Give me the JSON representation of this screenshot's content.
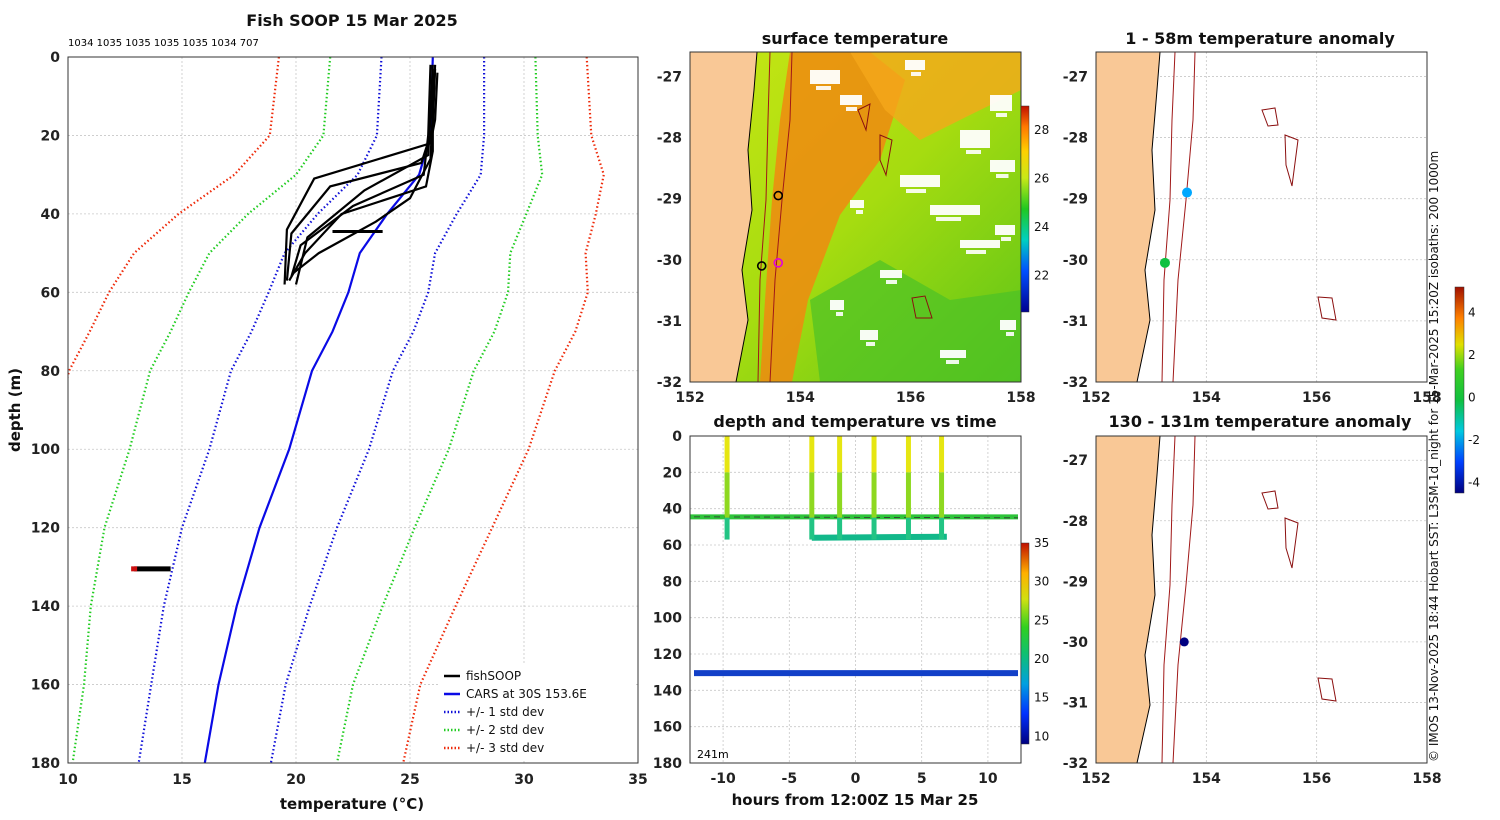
{
  "colors": {
    "land": "#f9c896",
    "fish": "#000000",
    "cars": "#0a0ae6",
    "std1": "#1010d8",
    "std2": "#22cc22",
    "std3": "#ee2a0a",
    "isobath": "#b22222"
  },
  "chart_data": [
    {
      "id": "profile",
      "type": "line",
      "title": "Fish SOOP 15 Mar 2025",
      "top_annotation": "1034 1035 1035 1035 1035 1034 707",
      "xlabel": "temperature (°C)",
      "ylabel": "depth (m)",
      "xlim": [
        10,
        35
      ],
      "ylim": [
        180,
        0
      ],
      "xticks": [
        "10",
        "15",
        "20",
        "25",
        "30",
        "35"
      ],
      "yticks": [
        "0",
        "20",
        "40",
        "60",
        "80",
        "100",
        "120",
        "140",
        "160",
        "180"
      ],
      "depths": [
        0,
        20,
        30,
        40,
        50,
        60,
        70,
        80,
        100,
        120,
        140,
        160,
        180
      ],
      "cars_mean": [
        26.0,
        25.9,
        25.4,
        24.0,
        22.8,
        22.3,
        21.6,
        20.7,
        19.7,
        18.4,
        17.4,
        16.6,
        16.0
      ],
      "cars_std": [
        2.25,
        2.35,
        2.7,
        3.05,
        3.3,
        3.5,
        3.55,
        3.55,
        3.5,
        3.4,
        3.2,
        2.95,
        2.9
      ],
      "fish_profiles": [
        {
          "t": [
            26.0,
            25.9,
            25.8,
            23.0,
            20.5,
            20.0
          ],
          "d": [
            2,
            15,
            25,
            34,
            46,
            58
          ]
        },
        {
          "t": [
            26.1,
            26.0,
            25.5,
            21.5,
            19.8,
            19.6
          ],
          "d": [
            3,
            18,
            27,
            33,
            45,
            57
          ]
        },
        {
          "t": [
            25.9,
            25.8,
            25.6,
            22.5,
            20.2,
            19.8
          ],
          "d": [
            2,
            20,
            30,
            38,
            48,
            56
          ]
        },
        {
          "t": [
            26.2,
            26.1,
            25.9,
            20.8,
            19.6,
            19.5
          ],
          "d": [
            4,
            16,
            22,
            31,
            44,
            58
          ]
        },
        {
          "t": [
            26.0,
            26.0,
            25.7,
            22.0,
            20.4,
            19.7
          ],
          "d": [
            3,
            24,
            33,
            40,
            50,
            57
          ]
        },
        {
          "t": [
            26.1,
            25.9,
            25.0,
            23.5,
            21.0,
            19.9
          ],
          "d": [
            2,
            26,
            36,
            42,
            50,
            55
          ]
        }
      ],
      "fish_deep": {
        "depth": 130.5,
        "t_min": 12.9,
        "t_max": 14.5
      },
      "fish_mid_segment": {
        "depth": 44.5,
        "t_min": 21.6,
        "t_max": 23.8
      },
      "legend": [
        {
          "label": "fishSOOP",
          "style": "solid",
          "color_key": "fish"
        },
        {
          "label": "CARS at 30S 153.6E",
          "style": "solid",
          "color_key": "cars"
        },
        {
          "label": "+/- 1 std dev",
          "style": "dotted",
          "color_key": "std1"
        },
        {
          "label": "+/- 2 std dev",
          "style": "dotted",
          "color_key": "std2"
        },
        {
          "label": "+/- 3 std dev",
          "style": "dotted",
          "color_key": "std3"
        }
      ]
    },
    {
      "id": "surface",
      "type": "heatmap",
      "title": "surface temperature",
      "xlim": [
        152,
        158
      ],
      "ylim": [
        -32,
        -26.6
      ],
      "xticks": [
        "152",
        "154",
        "156",
        "158"
      ],
      "yticks": [
        "-27",
        "-28",
        "-29",
        "-30",
        "-31",
        "-32"
      ],
      "colorbar": {
        "min": 20.5,
        "max": 29,
        "ticks": [
          "22",
          "24",
          "26",
          "28"
        ]
      },
      "markers": [
        {
          "lon": 153.6,
          "lat": -30.05,
          "kind": "vessel"
        },
        {
          "lon": 153.3,
          "lat": -30.1,
          "kind": "circle"
        },
        {
          "lon": 153.6,
          "lat": -28.95,
          "kind": "circle"
        }
      ]
    },
    {
      "id": "timeseries",
      "type": "scatter",
      "title": "depth and temperature vs time",
      "xlabel": "hours from 12:00Z 15 Mar 25",
      "xlim": [
        -12.5,
        12.5
      ],
      "ylim": [
        180,
        0
      ],
      "xticks": [
        "-10",
        "-5",
        "0",
        "5",
        "10"
      ],
      "yticks": [
        "0",
        "20",
        "40",
        "60",
        "80",
        "100",
        "120",
        "140",
        "160",
        "180"
      ],
      "corner_label": "241m",
      "colorbar": {
        "min": 9,
        "max": 35,
        "ticks": [
          "10",
          "15",
          "20",
          "25",
          "30",
          "35"
        ]
      },
      "shallow_track": {
        "depth": 44.5,
        "temp": 21.5
      },
      "deep_track": {
        "depth": 130.5,
        "temp": 13.5
      },
      "profile_times": [
        -9.7,
        -3.3,
        -1.2,
        1.4,
        4.0,
        6.5
      ],
      "bottom_segment": {
        "t_start": -3.3,
        "t_end": 6.9,
        "depth": 56,
        "temp": 19.5
      }
    },
    {
      "id": "anom_surface",
      "type": "scatter",
      "title": "1 - 58m temperature anomaly",
      "xlim": [
        152,
        158
      ],
      "ylim": [
        -32,
        -26.6
      ],
      "xticks": [
        "152",
        "154",
        "156",
        "158"
      ],
      "yticks": [
        "-27",
        "-28",
        "-29",
        "-30",
        "-31",
        "-32"
      ],
      "points": [
        {
          "lon": 153.65,
          "lat": -28.9,
          "anomaly": -1.2
        },
        {
          "lon": 153.25,
          "lat": -30.05,
          "anomaly": 0.3
        }
      ]
    },
    {
      "id": "anom_deep",
      "type": "scatter",
      "title": "130 - 131m temperature anomaly",
      "xlim": [
        152,
        158
      ],
      "ylim": [
        -32,
        -26.6
      ],
      "xticks": [
        "152",
        "154",
        "156",
        "158"
      ],
      "yticks": [
        "-27",
        "-28",
        "-29",
        "-30",
        "-31",
        "-32"
      ],
      "points": [
        {
          "lon": 153.6,
          "lat": -30.0,
          "anomaly": -4.0
        }
      ],
      "colorbar": {
        "min": -4.5,
        "max": 5.2,
        "ticks": [
          "4",
          "2",
          "0",
          "-2",
          "-4"
        ]
      }
    }
  ],
  "credit": "© IMOS 13-Nov-2025 18:44 Hobart SST: L3SM-1d_night for 15-Mar-2025 15:20Z isobaths: 200  1000m"
}
